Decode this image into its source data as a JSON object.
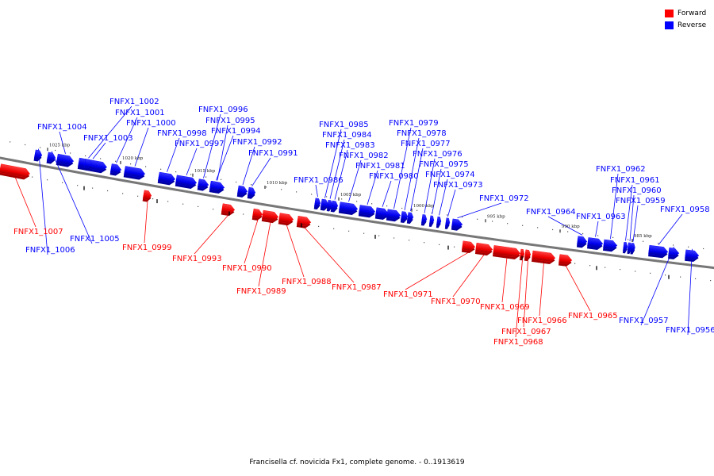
{
  "legend": {
    "forward": {
      "label": "Forward",
      "color": "#ff0000"
    },
    "reverse": {
      "label": "Reverse",
      "color": "#0000ff"
    }
  },
  "caption": "Francisella cf. novicida Fx1, complete genome. - 0..1913619",
  "ticks": [
    "1025 kbp",
    "1020 kbp",
    "1015 kbp",
    "1010 kbp",
    "1005 kbp",
    "1000 kbp",
    "995 kbp",
    "990 kbp",
    "985 kbp"
  ],
  "genes": [
    {
      "label": "FNFX1_1007",
      "strand": "forward"
    },
    {
      "label": "FNFX1_1006",
      "strand": "reverse"
    },
    {
      "label": "FNFX1_1005",
      "strand": "reverse"
    },
    {
      "label": "FNFX1_1004",
      "strand": "reverse"
    },
    {
      "label": "FNFX1_1003",
      "strand": "reverse"
    },
    {
      "label": "FNFX1_1002",
      "strand": "reverse"
    },
    {
      "label": "FNFX1_1001",
      "strand": "reverse"
    },
    {
      "label": "FNFX1_1000",
      "strand": "reverse"
    },
    {
      "label": "FNFX1_0999",
      "strand": "forward"
    },
    {
      "label": "FNFX1_0998",
      "strand": "reverse"
    },
    {
      "label": "FNFX1_0997",
      "strand": "reverse"
    },
    {
      "label": "FNFX1_0996",
      "strand": "reverse"
    },
    {
      "label": "FNFX1_0995",
      "strand": "reverse"
    },
    {
      "label": "FNFX1_0994",
      "strand": "reverse"
    },
    {
      "label": "FNFX1_0993",
      "strand": "forward"
    },
    {
      "label": "FNFX1_0992",
      "strand": "reverse"
    },
    {
      "label": "FNFX1_0991",
      "strand": "reverse"
    },
    {
      "label": "FNFX1_0990",
      "strand": "forward"
    },
    {
      "label": "FNFX1_0989",
      "strand": "forward"
    },
    {
      "label": "FNFX1_0988",
      "strand": "forward"
    },
    {
      "label": "FNFX1_0987",
      "strand": "forward"
    },
    {
      "label": "FNFX1_0986",
      "strand": "reverse"
    },
    {
      "label": "FNFX1_0985",
      "strand": "reverse"
    },
    {
      "label": "FNFX1_0984",
      "strand": "reverse"
    },
    {
      "label": "FNFX1_0983",
      "strand": "reverse"
    },
    {
      "label": "FNFX1_0982",
      "strand": "reverse"
    },
    {
      "label": "FNFX1_0981",
      "strand": "reverse"
    },
    {
      "label": "FNFX1_0980",
      "strand": "reverse"
    },
    {
      "label": "FNFX1_0979",
      "strand": "reverse"
    },
    {
      "label": "FNFX1_0978",
      "strand": "reverse"
    },
    {
      "label": "FNFX1_0977",
      "strand": "reverse"
    },
    {
      "label": "FNFX1_0976",
      "strand": "reverse"
    },
    {
      "label": "FNFX1_0975",
      "strand": "reverse"
    },
    {
      "label": "FNFX1_0974",
      "strand": "reverse"
    },
    {
      "label": "FNFX1_0973",
      "strand": "reverse"
    },
    {
      "label": "FNFX1_0972",
      "strand": "reverse"
    },
    {
      "label": "FNFX1_0971",
      "strand": "forward"
    },
    {
      "label": "FNFX1_0970",
      "strand": "forward"
    },
    {
      "label": "FNFX1_0969",
      "strand": "forward"
    },
    {
      "label": "FNFX1_0968",
      "strand": "forward"
    },
    {
      "label": "FNFX1_0967",
      "strand": "forward"
    },
    {
      "label": "FNFX1_0966",
      "strand": "forward"
    },
    {
      "label": "FNFX1_0965",
      "strand": "forward"
    },
    {
      "label": "FNFX1_0964",
      "strand": "reverse"
    },
    {
      "label": "FNFX1_0963",
      "strand": "reverse"
    },
    {
      "label": "FNFX1_0962",
      "strand": "reverse"
    },
    {
      "label": "FNFX1_0961",
      "strand": "reverse"
    },
    {
      "label": "FNFX1_0960",
      "strand": "reverse"
    },
    {
      "label": "FNFX1_0959",
      "strand": "reverse"
    },
    {
      "label": "FNFX1_0958",
      "strand": "reverse"
    },
    {
      "label": "FNFX1_0957",
      "strand": "reverse"
    },
    {
      "label": "FNFX1_0956",
      "strand": "reverse"
    }
  ]
}
